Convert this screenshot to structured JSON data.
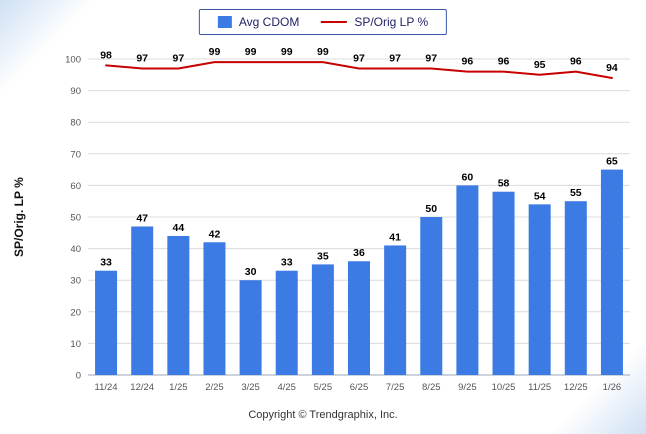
{
  "page": {
    "footer": "Copyright © Trendgraphix, Inc."
  },
  "legend": {
    "series1": "Avg CDOM",
    "series2": "SP/Orig LP %"
  },
  "colors": {
    "bar": "#3c7ae4",
    "line": "#c80000",
    "grid": "#dcdcdc",
    "axis": "#9aa7b8",
    "tick_text": "#555555",
    "label_text": "#000000",
    "legend_border": "#3a57a7",
    "legend_text": "#222266"
  },
  "chart_data": {
    "type": "bar",
    "subtype": "bar-with-line-overlay",
    "categories": [
      "11/24",
      "12/24",
      "1/25",
      "2/25",
      "3/25",
      "4/25",
      "5/25",
      "6/25",
      "7/25",
      "8/25",
      "9/25",
      "10/25",
      "11/25",
      "12/25",
      "1/26"
    ],
    "series": [
      {
        "name": "Avg CDOM",
        "type": "bar",
        "color": "#3c7ae4",
        "values": [
          33,
          47,
          44,
          42,
          30,
          33,
          35,
          36,
          41,
          50,
          60,
          58,
          54,
          55,
          65
        ]
      },
      {
        "name": "SP/Orig LP %",
        "type": "line",
        "color": "#c80000",
        "values": [
          98,
          97,
          97,
          99,
          99,
          99,
          99,
          97,
          97,
          97,
          96,
          96,
          95,
          96,
          94
        ]
      }
    ],
    "title": "",
    "xlabel": "",
    "ylabel": "SP/Orig. LP %",
    "ylim": [
      0,
      100
    ],
    "ytick_step": 10,
    "grid": true,
    "legend_position": "top"
  }
}
